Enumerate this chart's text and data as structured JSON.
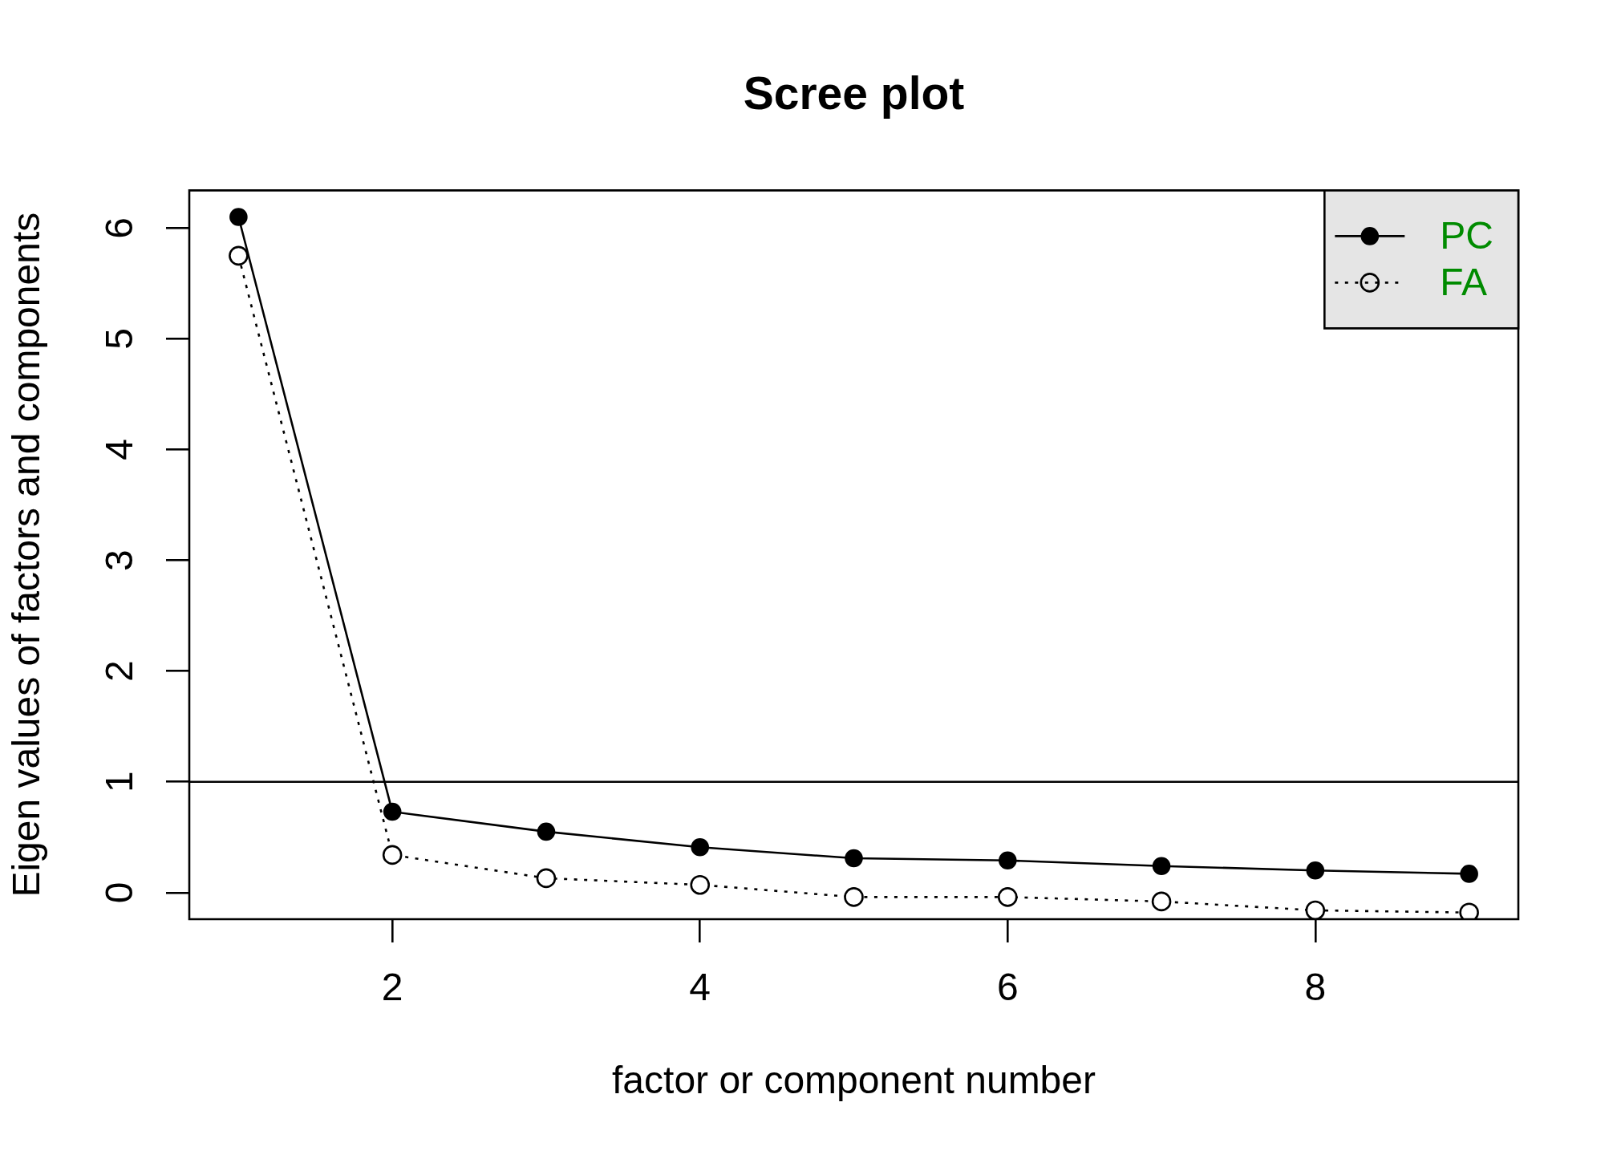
{
  "chart_data": {
    "type": "line",
    "title": "Scree plot",
    "xlabel": "factor or component number",
    "ylabel": "Eigen values of factors and components",
    "x": [
      1,
      2,
      3,
      4,
      5,
      6,
      7,
      8,
      9
    ],
    "series": [
      {
        "name": "PC",
        "color": "#000000",
        "line_style": "solid",
        "values": [
          6.1,
          0.73,
          0.55,
          0.41,
          0.31,
          0.29,
          0.24,
          0.2,
          0.17
        ]
      },
      {
        "name": "FA",
        "color": "#000000",
        "line_style": "dotted",
        "values": [
          5.75,
          0.34,
          0.13,
          0.07,
          -0.04,
          -0.04,
          -0.08,
          -0.16,
          -0.18
        ]
      }
    ],
    "xlim": [
      0.68,
      9.32
    ],
    "ylim": [
      -0.24,
      6.34
    ],
    "xticks": [
      2,
      4,
      6,
      8
    ],
    "yticks": [
      0,
      1,
      2,
      3,
      4,
      5,
      6
    ],
    "ref_lines": [
      {
        "axis": "y",
        "value": 1,
        "color": "#000000"
      }
    ],
    "legend": "top right",
    "grid": false,
    "marker": "circle"
  }
}
